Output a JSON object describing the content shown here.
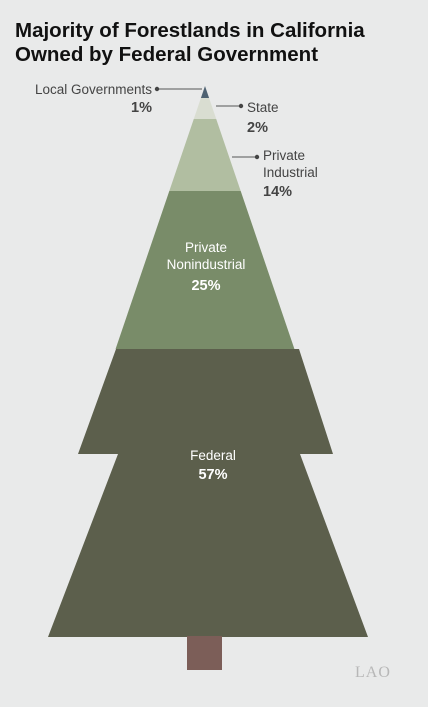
{
  "title_lines": [
    "Majority of Forestlands in California",
    "Owned by Federal Government"
  ],
  "logo_text": "LAO",
  "chart_data": {
    "type": "area",
    "series": [
      {
        "name": "Local Governments",
        "value": 1,
        "label": "1%",
        "color": "#4f6272"
      },
      {
        "name": "State",
        "value": 2,
        "label": "2%",
        "color": "#d9ddd1"
      },
      {
        "name": "Private Industrial",
        "value": 14,
        "label": "14%",
        "color": "#b1bea1"
      },
      {
        "name": "Private Nonindustrial",
        "value": 25,
        "label": "25%",
        "color": "#798c69"
      },
      {
        "name": "Federal",
        "value": 57,
        "label": "57%",
        "color": "#5c5f4c"
      }
    ],
    "trunk_color": "#7c5e58"
  }
}
